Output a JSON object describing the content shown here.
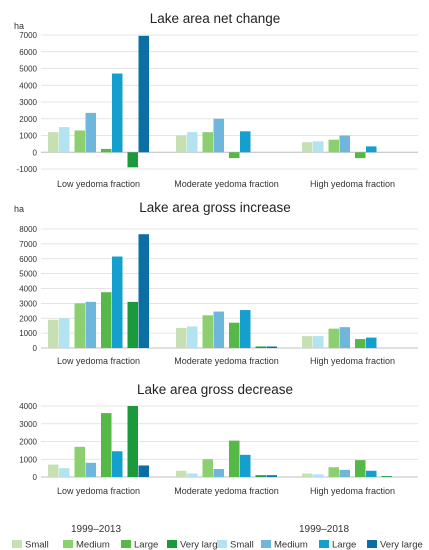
{
  "colors": {
    "small_1999_2013": "#c6e0b4",
    "medium_1999_2013": "#8ccf6e",
    "large_1999_2013": "#56b847",
    "verylarge_1999_2013": "#1a9a3c",
    "small_1999_2018": "#b3e2f1",
    "medium_1999_2018": "#6fb6dc",
    "large_1999_2018": "#159fcf",
    "verylarge_1999_2018": "#0b6fa4",
    "grid": "#dcdcdc",
    "axis": "#bfbfbf"
  },
  "legend": {
    "periods": [
      "1999–2013",
      "1999–2018"
    ],
    "sizes": [
      "Small",
      "Medium",
      "Large",
      "Very large"
    ]
  },
  "chart_data": [
    {
      "type": "bar",
      "title": "Lake area net change",
      "ylabel": "ha",
      "ylim": [
        -1000,
        7000
      ],
      "yticks": [
        -1000,
        0,
        1000,
        2000,
        3000,
        4000,
        5000,
        6000,
        7000
      ],
      "categories": [
        "Low yedoma fraction",
        "Moderate yedoma fraction",
        "High yedoma fraction"
      ],
      "series": [
        {
          "name": "Small",
          "period": "1999–2013",
          "values": [
            1200,
            1000,
            600
          ]
        },
        {
          "name": "Small",
          "period": "1999–2018",
          "values": [
            1500,
            1200,
            650
          ]
        },
        {
          "name": "Medium",
          "period": "1999–2013",
          "values": [
            1300,
            1200,
            750
          ]
        },
        {
          "name": "Medium",
          "period": "1999–2018",
          "values": [
            2350,
            2000,
            1000
          ]
        },
        {
          "name": "Large",
          "period": "1999–2013",
          "values": [
            200,
            -350,
            -350
          ]
        },
        {
          "name": "Large",
          "period": "1999–2018",
          "values": [
            4700,
            1250,
            350
          ]
        },
        {
          "name": "Very large",
          "period": "1999–2013",
          "values": [
            -900,
            0,
            0
          ]
        },
        {
          "name": "Very large",
          "period": "1999–2018",
          "values": [
            6950,
            0,
            0
          ]
        }
      ]
    },
    {
      "type": "bar",
      "title": "Lake area gross increase",
      "ylabel": "ha",
      "ylim": [
        0,
        8000
      ],
      "yticks": [
        0,
        1000,
        2000,
        3000,
        4000,
        5000,
        6000,
        7000,
        8000
      ],
      "categories": [
        "Low yedoma fraction",
        "Moderate yedoma fraction",
        "High yedoma fraction"
      ],
      "series": [
        {
          "name": "Small",
          "period": "1999–2013",
          "values": [
            1900,
            1350,
            800
          ]
        },
        {
          "name": "Small",
          "period": "1999–2018",
          "values": [
            2000,
            1450,
            800
          ]
        },
        {
          "name": "Medium",
          "period": "1999–2013",
          "values": [
            3000,
            2200,
            1300
          ]
        },
        {
          "name": "Medium",
          "period": "1999–2018",
          "values": [
            3100,
            2450,
            1400
          ]
        },
        {
          "name": "Large",
          "period": "1999–2013",
          "values": [
            3750,
            1700,
            600
          ]
        },
        {
          "name": "Large",
          "period": "1999–2018",
          "values": [
            6150,
            2550,
            700
          ]
        },
        {
          "name": "Very large",
          "period": "1999–2013",
          "values": [
            3100,
            100,
            0
          ]
        },
        {
          "name": "Very large",
          "period": "1999–2018",
          "values": [
            7650,
            100,
            0
          ]
        }
      ]
    },
    {
      "type": "bar",
      "title": "Lake area gross decrease",
      "ylabel": "",
      "ylim": [
        0,
        4000
      ],
      "yticks": [
        0,
        1000,
        2000,
        3000,
        4000
      ],
      "categories": [
        "Low yedoma fraction",
        "Moderate yedoma fraction",
        "High yedoma fraction"
      ],
      "series": [
        {
          "name": "Small",
          "period": "1999–2013",
          "values": [
            700,
            350,
            200
          ]
        },
        {
          "name": "Small",
          "period": "1999–2018",
          "values": [
            500,
            200,
            150
          ]
        },
        {
          "name": "Medium",
          "period": "1999–2013",
          "values": [
            1700,
            1000,
            550
          ]
        },
        {
          "name": "Medium",
          "period": "1999–2018",
          "values": [
            800,
            450,
            400
          ]
        },
        {
          "name": "Large",
          "period": "1999–2013",
          "values": [
            3600,
            2050,
            950
          ]
        },
        {
          "name": "Large",
          "period": "1999–2018",
          "values": [
            1450,
            1250,
            350
          ]
        },
        {
          "name": "Very large",
          "period": "1999–2013",
          "values": [
            4000,
            100,
            50
          ]
        },
        {
          "name": "Very large",
          "period": "1999–2018",
          "values": [
            650,
            100,
            0
          ]
        }
      ]
    }
  ]
}
